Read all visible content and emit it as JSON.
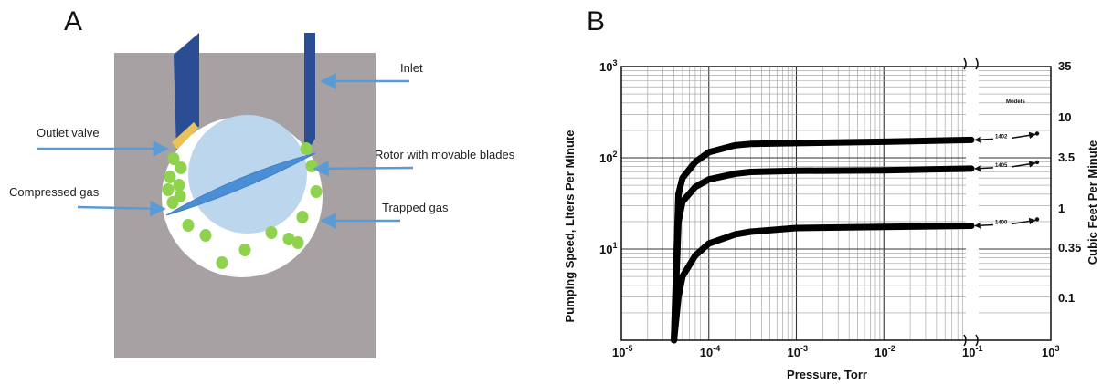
{
  "panel_a": {
    "panel_label": "A",
    "labels": {
      "inlet": "Inlet",
      "outlet_valve": "Outlet valve",
      "rotor": "Rotor with movable blades",
      "compressed_gas": "Compressed gas",
      "trapped_gas": "Trapped gas"
    },
    "colors": {
      "housing": "#a7a1a3",
      "chamber": "#ffffff",
      "rotor": "#bcd6ee",
      "blade": "#4a8fd6",
      "port": "#2a4d93",
      "valve": "#e9c25a",
      "gas": "#8fd24e",
      "arrow": "#5b9bd5"
    }
  },
  "panel_b": {
    "panel_label": "B",
    "models_label": "Models",
    "chart_data": {
      "type": "line",
      "xlabel": "Pressure, Torr",
      "ylabel": "Pumping Speed, Liters Per Minute",
      "ylabel_right": "Cubic Feet Per Minute",
      "x_scale": "log",
      "y_scale": "log",
      "xlim": [
        1e-05,
        1000
      ],
      "x_axis_break": [
        0.1,
        1000
      ],
      "ylim": [
        1,
        1000
      ],
      "x_ticks": [
        {
          "base": "10",
          "exp": "-5"
        },
        {
          "base": "10",
          "exp": "-4"
        },
        {
          "base": "10",
          "exp": "-3"
        },
        {
          "base": "10",
          "exp": "-2"
        },
        {
          "base": "10",
          "exp": "-1"
        },
        {
          "base": "10",
          "exp": "3"
        }
      ],
      "y_ticks": [
        {
          "base": "10",
          "exp": "3"
        },
        {
          "base": "10",
          "exp": "2"
        },
        {
          "base": "10",
          "exp": "1"
        }
      ],
      "y_ticks_right": [
        "35",
        "10",
        "3.5",
        "1",
        "0.35",
        "0.1"
      ],
      "grid": true,
      "series": [
        {
          "name": "1402",
          "x": [
            4e-05,
            4.5e-05,
            5e-05,
            7e-05,
            0.0001,
            0.0002,
            0.0003,
            0.001,
            0.01,
            0.1
          ],
          "y": [
            1,
            40,
            60,
            90,
            115,
            137,
            142,
            145,
            150,
            157
          ]
        },
        {
          "name": "1405",
          "x": [
            4e-05,
            4.5e-05,
            5e-05,
            7e-05,
            0.0001,
            0.0002,
            0.0003,
            0.001,
            0.01,
            0.1
          ],
          "y": [
            1,
            20,
            33,
            48,
            58,
            67,
            70,
            72,
            73,
            76
          ]
        },
        {
          "name": "1400",
          "x": [
            4e-05,
            4.5e-05,
            5e-05,
            7e-05,
            0.0001,
            0.0002,
            0.0003,
            0.001,
            0.01,
            0.1
          ],
          "y": [
            1,
            3,
            5,
            8.5,
            11.5,
            14.5,
            15.5,
            17,
            17.5,
            18
          ]
        }
      ]
    }
  }
}
